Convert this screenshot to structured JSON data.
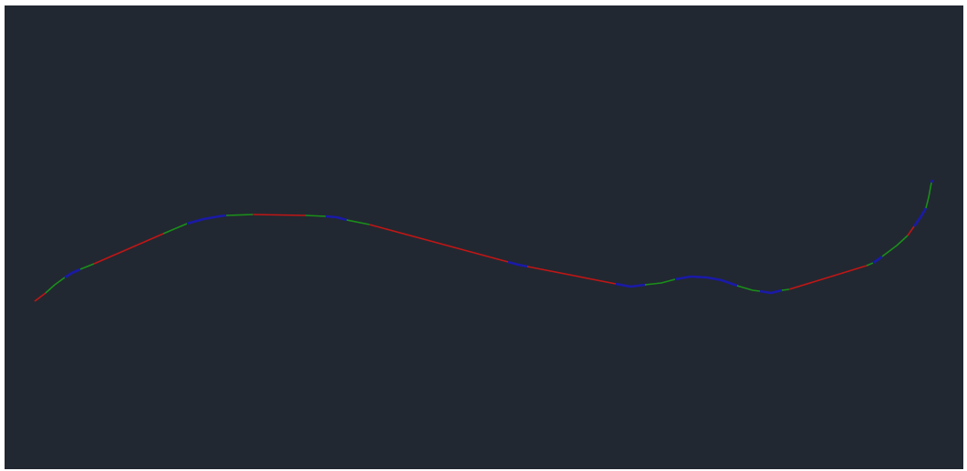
{
  "canvas": {
    "background": "#222831",
    "segment_colors": {
      "line": "#c01616",
      "spiral": "#1a8f1a",
      "curve": "#1a1aa8"
    }
  }
}
